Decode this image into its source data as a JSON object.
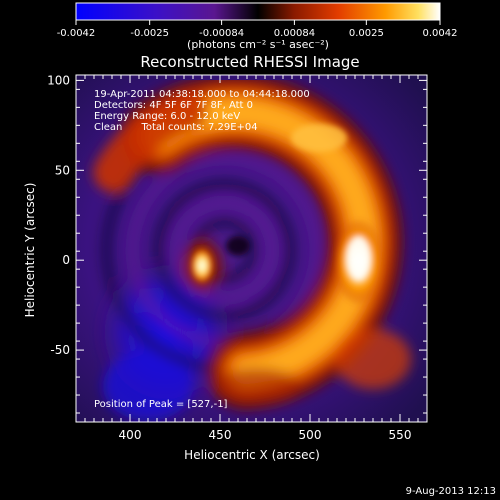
{
  "colorbar": {
    "tick_labels": [
      "-0.0042",
      "-0.0025",
      "-0.00084",
      "0.00084",
      "0.0025",
      "0.0042"
    ],
    "tick_values": [
      -0.0042,
      -0.0025,
      -0.00084,
      0.00084,
      0.0025,
      0.0042
    ],
    "range": [
      -0.0042,
      0.0042
    ],
    "units": "(photons cm⁻² s⁻¹ asec⁻²)"
  },
  "annotations": {
    "time_range": "19-Apr-2011 04:38:18.000 to 04:44:18.000",
    "detectors": "Detectors: 4F 5F 6F 7F 8F, Att 0",
    "energy_range": "Energy Range: 6.0 - 12.0 keV",
    "clean_counts": "Clean      Total counts: 7.29E+04",
    "peak_position": "Position of Peak = [527,-1]",
    "footer_date": "9-Aug-2013 12:13"
  },
  "chart_data": {
    "type": "heatmap",
    "title": "Reconstructed RHESSI Image",
    "xlabel": "Heliocentric X (arcsec)",
    "ylabel": "Heliocentric Y (arcsec)",
    "xlim": [
      370,
      565
    ],
    "ylim": [
      -90,
      103
    ],
    "xticks": [
      400,
      450,
      500,
      550
    ],
    "yticks": [
      -50,
      0,
      50,
      100
    ],
    "x_tick_labels": [
      "400",
      "450",
      "500",
      "550"
    ],
    "y_tick_labels": [
      "-50",
      "0",
      "50",
      "100"
    ],
    "value_range": [
      -0.0042,
      0.0042
    ],
    "peak": {
      "x": 527,
      "y": -1
    },
    "features": [
      {
        "name": "bright arc",
        "cx": 458,
        "cy": 10,
        "radius_arcsec": 72,
        "from_angle_deg": -85,
        "to_angle_deg": 125,
        "peak_value": 0.0042
      },
      {
        "name": "compact source",
        "x": 440,
        "y": -3,
        "value": 0.0038
      },
      {
        "name": "negative region",
        "x": 420,
        "y": -40,
        "value": -0.0042
      }
    ]
  },
  "colors": {
    "colormap": [
      "#0000ff",
      "#3b10c8",
      "#5a1690",
      "#000000",
      "#8b1a00",
      "#e23c00",
      "#ff9a00",
      "#ffe060",
      "#ffffff"
    ],
    "background": "#000000",
    "text": "#ffffff"
  }
}
